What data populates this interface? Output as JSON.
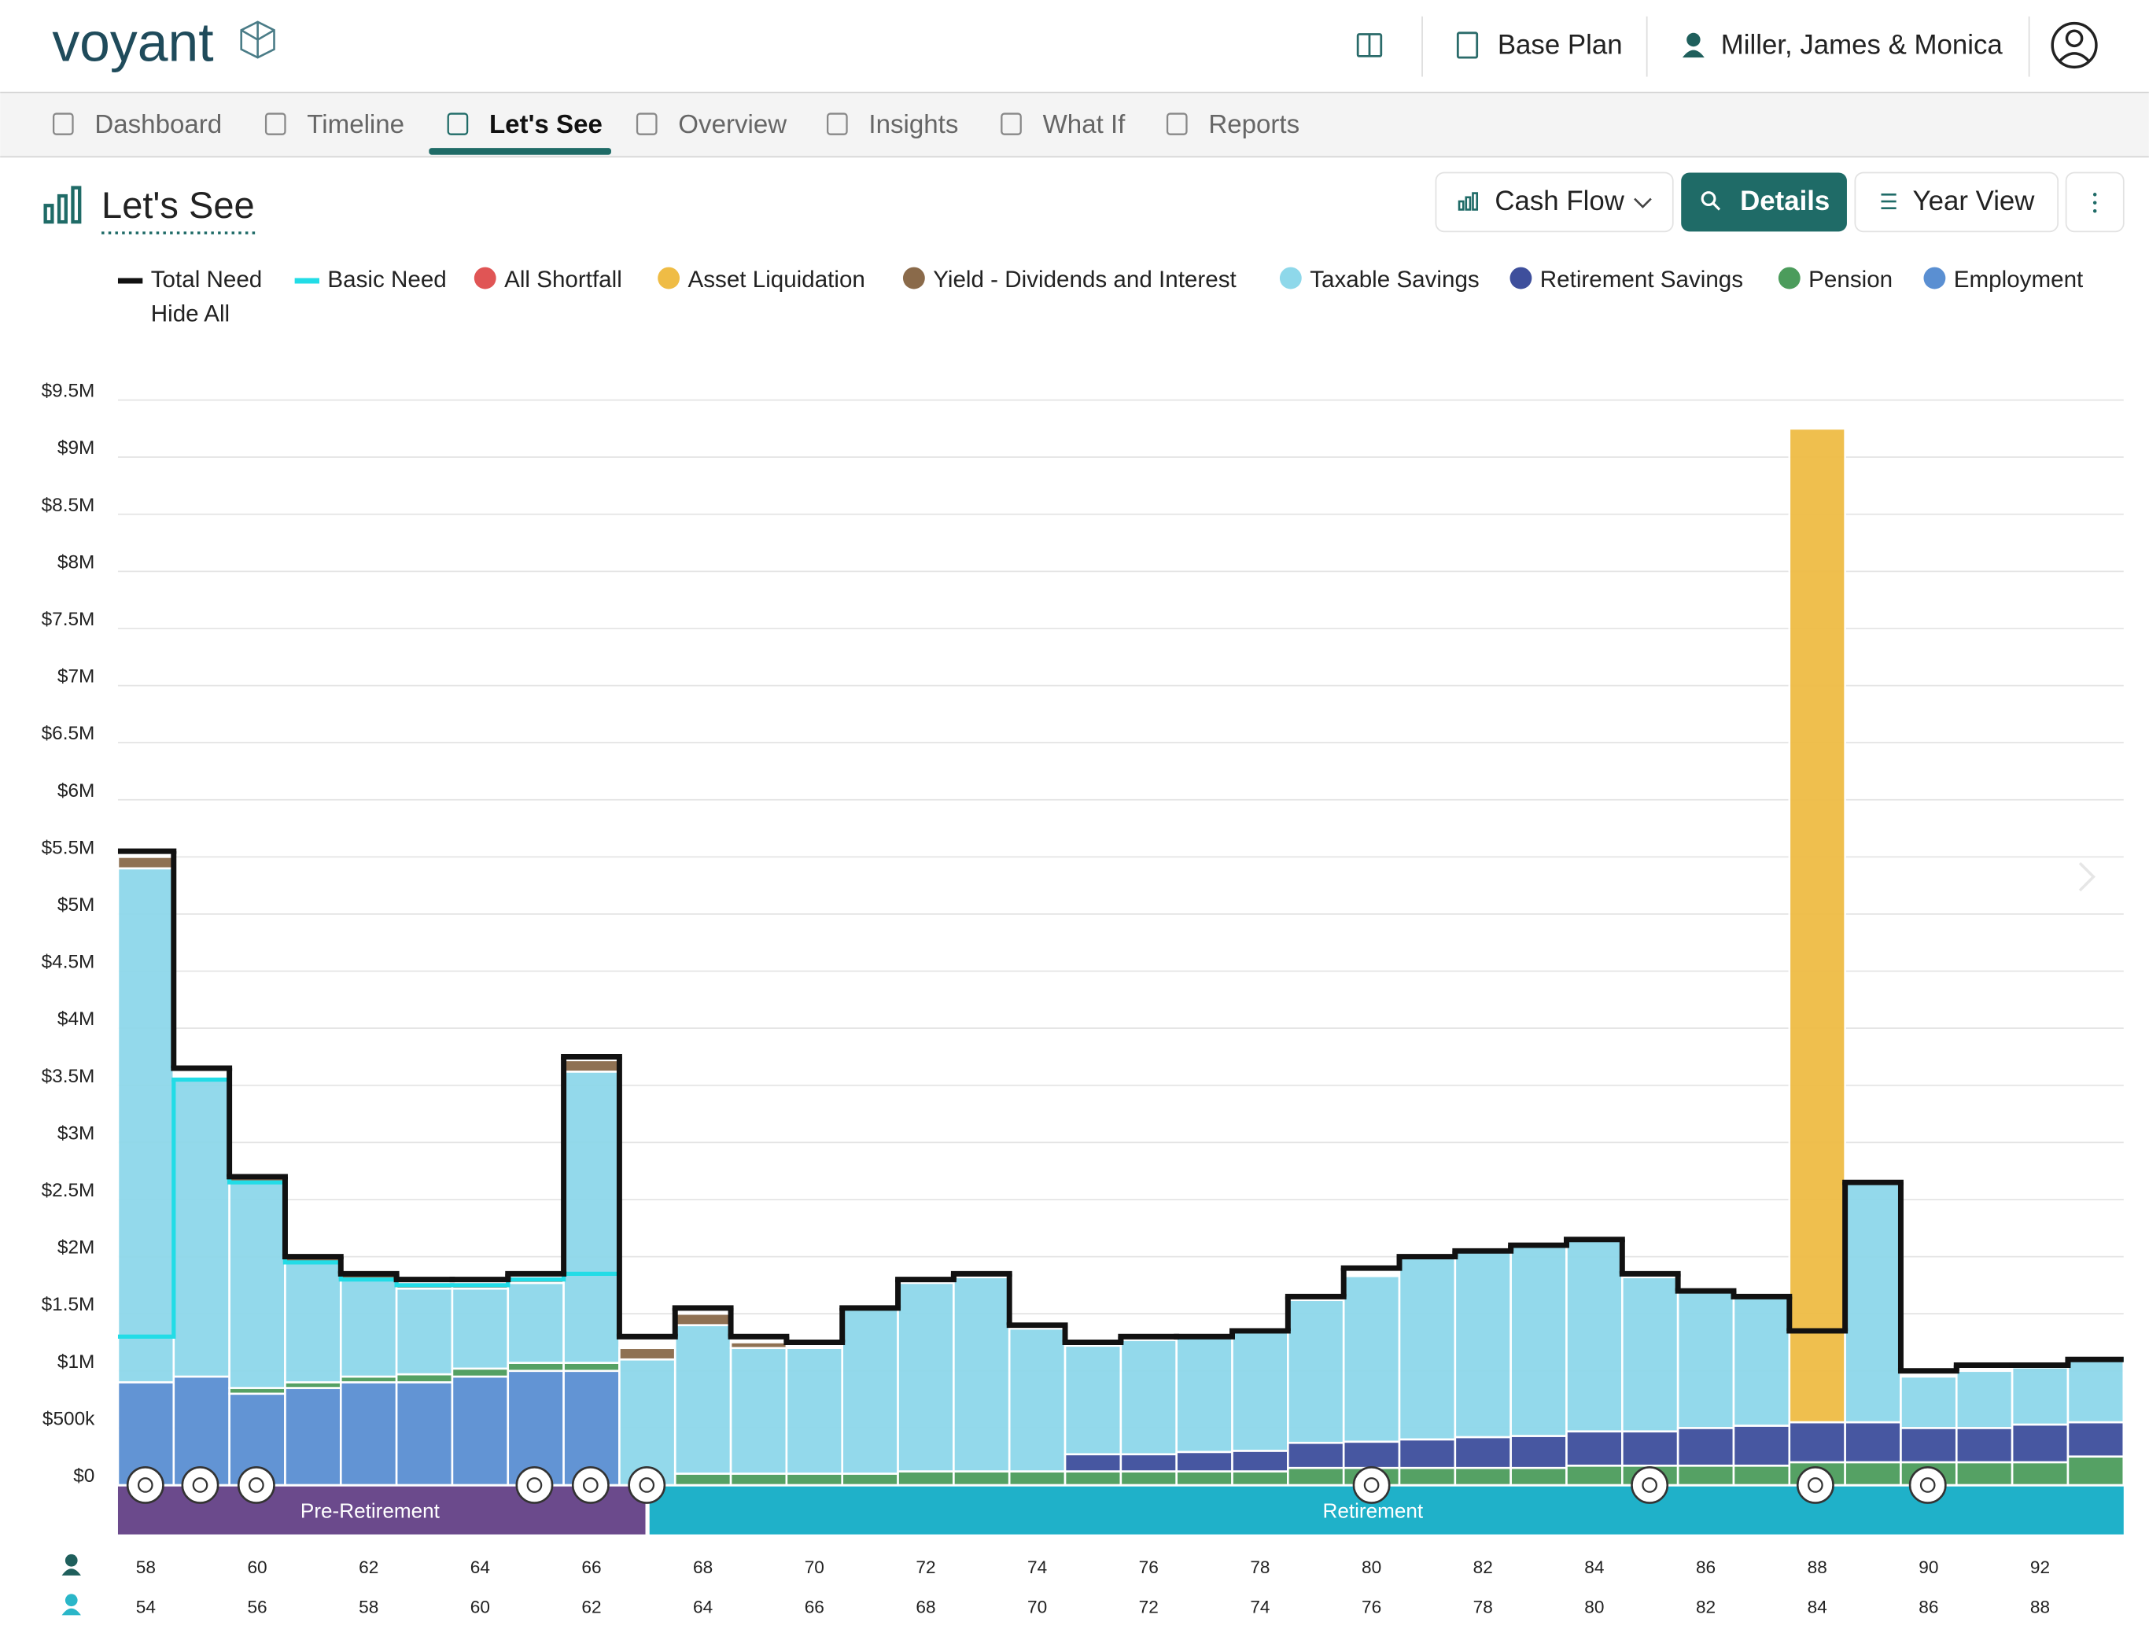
{
  "header": {
    "logo": "voyant",
    "plan": "Base Plan",
    "client": "Miller, James & Monica"
  },
  "nav": [
    "Dashboard",
    "Timeline",
    "Let's See",
    "Overview",
    "Insights",
    "What If",
    "Reports"
  ],
  "page": {
    "title": "Let's See",
    "view_menu": "Cash Flow",
    "details_button": "Details",
    "period_button": "Year View"
  },
  "chart_data": {
    "type": "bar",
    "stacked": true,
    "grid": true,
    "hide_all": "Hide All",
    "phases": [
      "Pre-Retirement",
      "Retirement"
    ],
    "categories": [
      58,
      null,
      60,
      null,
      62,
      null,
      64,
      null,
      66,
      null,
      68,
      null,
      70,
      null,
      72,
      null,
      74,
      null,
      76,
      null,
      78,
      null,
      80,
      null,
      82,
      null,
      84,
      null,
      86,
      null,
      88,
      null,
      90,
      null,
      92,
      null
    ],
    "secondary_categories": [
      54,
      null,
      56,
      null,
      58,
      null,
      60,
      null,
      62,
      null,
      64,
      null,
      66,
      null,
      68,
      null,
      70,
      null,
      72,
      null,
      74,
      null,
      76,
      null,
      78,
      null,
      80,
      null,
      82,
      null,
      84,
      null,
      86,
      null,
      88,
      null
    ],
    "ylim": [
      0,
      9500000
    ],
    "yticks": [
      {
        "value": 0,
        "label": "$0"
      },
      {
        "value": 500000,
        "label": "$500k"
      },
      {
        "value": 1000000,
        "label": "$1M"
      },
      {
        "value": 1500000,
        "label": "$1.5M"
      },
      {
        "value": 2000000,
        "label": "$2M"
      },
      {
        "value": 2500000,
        "label": "$2.5M"
      },
      {
        "value": 3000000,
        "label": "$3M"
      },
      {
        "value": 3500000,
        "label": "$3.5M"
      },
      {
        "value": 4000000,
        "label": "$4M"
      },
      {
        "value": 4500000,
        "label": "$4.5M"
      },
      {
        "value": 5000000,
        "label": "$5M"
      },
      {
        "value": 5500000,
        "label": "$5.5M"
      },
      {
        "value": 6000000,
        "label": "$6M"
      },
      {
        "value": 6500000,
        "label": "$6.5M"
      },
      {
        "value": 7000000,
        "label": "$7M"
      },
      {
        "value": 7500000,
        "label": "$7.5M"
      },
      {
        "value": 8000000,
        "label": "$8M"
      },
      {
        "value": 8500000,
        "label": "$8.5M"
      },
      {
        "value": 9000000,
        "label": "$9M"
      },
      {
        "value": 9500000,
        "label": "$9.5M"
      }
    ],
    "series": [
      {
        "name": "Employment",
        "color": "#5a8fd2",
        "values": [
          900000,
          950000,
          800000,
          850000,
          900000,
          900000,
          950000,
          1000000,
          1000000,
          0,
          0,
          0,
          0,
          0,
          0,
          0,
          0,
          0,
          0,
          0,
          0,
          0,
          0,
          0,
          0,
          0,
          0,
          0,
          0,
          0,
          0,
          0,
          0,
          0,
          0,
          0
        ]
      },
      {
        "name": "Pension",
        "color": "#4c9c5c",
        "values": [
          0,
          0,
          50000,
          50000,
          50000,
          70000,
          70000,
          70000,
          70000,
          0,
          100000,
          100000,
          100000,
          100000,
          120000,
          120000,
          120000,
          120000,
          120000,
          120000,
          120000,
          150000,
          150000,
          150000,
          150000,
          150000,
          170000,
          170000,
          170000,
          170000,
          200000,
          200000,
          200000,
          200000,
          200000,
          250000
        ]
      },
      {
        "name": "Retirement Savings",
        "color": "#3e4f9c",
        "values": [
          0,
          0,
          0,
          0,
          0,
          0,
          0,
          0,
          0,
          0,
          0,
          0,
          0,
          0,
          0,
          0,
          0,
          150000,
          150000,
          170000,
          180000,
          220000,
          230000,
          250000,
          270000,
          280000,
          300000,
          300000,
          330000,
          350000,
          350000,
          350000,
          300000,
          300000,
          330000,
          300000
        ]
      },
      {
        "name": "Taxable Savings",
        "color": "#8ed8ea",
        "values": [
          4500000,
          2600000,
          1800000,
          1050000,
          850000,
          750000,
          700000,
          700000,
          2550000,
          1100000,
          1300000,
          1100000,
          1100000,
          1450000,
          1650000,
          1700000,
          1250000,
          950000,
          1000000,
          1030000,
          1070000,
          1250000,
          1450000,
          1600000,
          1650000,
          1700000,
          1700000,
          1350000,
          1200000,
          1150000,
          0,
          2100000,
          450000,
          500000,
          500000,
          550000
        ]
      },
      {
        "name": "Yield - Dividends and Interest",
        "color": "#8a6a4a",
        "values": [
          100000,
          0,
          50000,
          50000,
          50000,
          50000,
          50000,
          50000,
          100000,
          100000,
          100000,
          50000,
          0,
          0,
          0,
          0,
          0,
          0,
          0,
          0,
          0,
          0,
          0,
          0,
          0,
          0,
          0,
          0,
          0,
          0,
          0,
          0,
          0,
          0,
          0,
          0
        ]
      },
      {
        "name": "Asset Liquidation",
        "color": "#efbc45",
        "values": [
          0,
          0,
          0,
          0,
          0,
          0,
          0,
          0,
          0,
          0,
          0,
          0,
          0,
          0,
          0,
          0,
          0,
          0,
          0,
          0,
          0,
          0,
          0,
          0,
          0,
          0,
          0,
          0,
          0,
          0,
          8700000,
          0,
          0,
          0,
          0,
          0
        ]
      },
      {
        "name": "All Shortfall",
        "color": "#e05555",
        "values": [
          0,
          0,
          0,
          0,
          0,
          0,
          0,
          0,
          0,
          0,
          0,
          0,
          0,
          0,
          0,
          0,
          0,
          0,
          0,
          0,
          0,
          0,
          0,
          0,
          0,
          0,
          0,
          0,
          0,
          0,
          0,
          0,
          0,
          0,
          0,
          0
        ]
      }
    ],
    "lines": [
      {
        "name": "Total Need",
        "color": "#111111",
        "values": [
          5550000,
          3650000,
          2700000,
          2000000,
          1850000,
          1800000,
          1800000,
          1850000,
          3750000,
          1300000,
          1550000,
          1300000,
          1250000,
          1550000,
          1800000,
          1850000,
          1400000,
          1250000,
          1300000,
          1300000,
          1350000,
          1650000,
          1900000,
          2000000,
          2050000,
          2100000,
          2150000,
          1850000,
          1700000,
          1650000,
          1350000,
          2650000,
          1000000,
          1050000,
          1050000,
          1100000
        ]
      },
      {
        "name": "Basic Need",
        "color": "#22dce6",
        "values": [
          1300000,
          3550000,
          2650000,
          1950000,
          1800000,
          1750000,
          1750000,
          1800000,
          1850000,
          1300000,
          1550000,
          1300000,
          1250000,
          1550000,
          1800000,
          1850000,
          1400000,
          1250000,
          1300000,
          1300000,
          1350000,
          1650000,
          1900000,
          2000000,
          2050000,
          2100000,
          2150000,
          1850000,
          1700000,
          1650000,
          1350000,
          2650000,
          1000000,
          1050000,
          1050000,
          1100000
        ]
      }
    ]
  }
}
